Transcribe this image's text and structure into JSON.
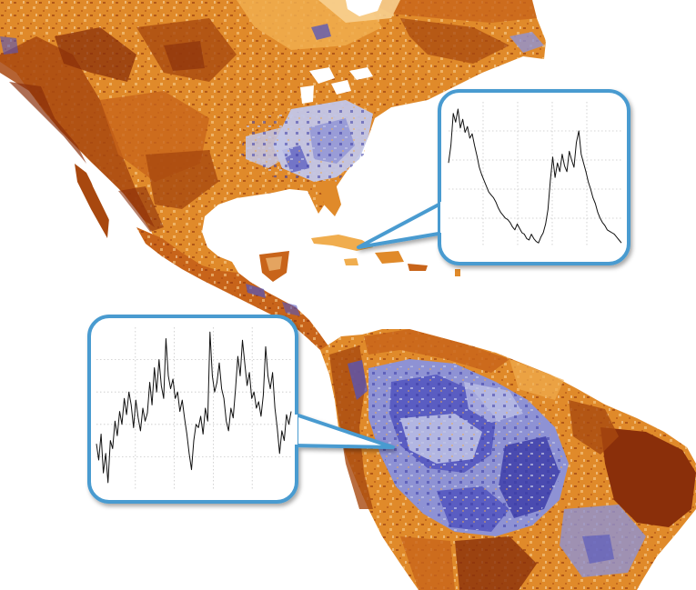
{
  "map": {
    "regions": [
      "north-america",
      "central-america",
      "caribbean",
      "south-america"
    ],
    "palette": {
      "dark_brown": "#8a2f0a",
      "brown": "#a8480f",
      "rust": "#c8641a",
      "orange": "#e08a2a",
      "light_orange": "#f0ad4e",
      "pale_orange": "#f7cf8f",
      "cream": "#fbe6be",
      "pale_blue": "#c2c6e8",
      "lavender": "#8e92d4",
      "blue": "#5154be",
      "dark_blue": "#3a3aa6",
      "callout_border": "#4a9bd0",
      "ocean": "#ffffff"
    }
  },
  "chart_data": [
    {
      "type": "line",
      "title": "",
      "xlabel": "",
      "ylabel": "",
      "grid": true,
      "y": [
        0.58,
        0.7,
        0.92,
        0.86,
        0.95,
        0.82,
        0.88,
        0.79,
        0.83,
        0.75,
        0.78,
        0.7,
        0.63,
        0.55,
        0.5,
        0.46,
        0.42,
        0.38,
        0.36,
        0.34,
        0.31,
        0.27,
        0.24,
        0.22,
        0.2,
        0.19,
        0.17,
        0.14,
        0.12,
        0.16,
        0.13,
        0.1,
        0.09,
        0.06,
        0.05,
        0.09,
        0.06,
        0.04,
        0.03,
        0.07,
        0.1,
        0.16,
        0.26,
        0.46,
        0.62,
        0.48,
        0.58,
        0.52,
        0.64,
        0.56,
        0.52,
        0.66,
        0.6,
        0.55,
        0.72,
        0.8,
        0.64,
        0.58,
        0.52,
        0.45,
        0.4,
        0.34,
        0.3,
        0.24,
        0.2,
        0.17,
        0.15,
        0.12,
        0.11,
        0.1,
        0.09,
        0.07,
        0.05,
        0.03
      ]
    },
    {
      "type": "line",
      "title": "",
      "xlabel": "",
      "ylabel": "",
      "grid": true,
      "y": [
        0.28,
        0.18,
        0.34,
        0.1,
        0.22,
        0.04,
        0.3,
        0.25,
        0.42,
        0.33,
        0.48,
        0.4,
        0.56,
        0.46,
        0.6,
        0.52,
        0.38,
        0.55,
        0.44,
        0.36,
        0.5,
        0.42,
        0.47,
        0.66,
        0.52,
        0.75,
        0.6,
        0.8,
        0.64,
        0.56,
        0.93,
        0.7,
        0.62,
        0.68,
        0.56,
        0.6,
        0.48,
        0.55,
        0.44,
        0.34,
        0.22,
        0.12,
        0.3,
        0.4,
        0.38,
        0.45,
        0.34,
        0.5,
        0.42,
        0.97,
        0.7,
        0.6,
        0.66,
        0.78,
        0.62,
        0.56,
        0.42,
        0.36,
        0.5,
        0.44,
        0.62,
        0.82,
        0.7,
        0.92,
        0.78,
        0.64,
        0.72,
        0.56,
        0.6,
        0.5,
        0.54,
        0.45,
        0.58,
        0.88,
        0.7,
        0.62,
        0.72,
        0.5,
        0.38,
        0.22,
        0.36,
        0.3,
        0.46,
        0.4,
        0.48
      ]
    }
  ]
}
